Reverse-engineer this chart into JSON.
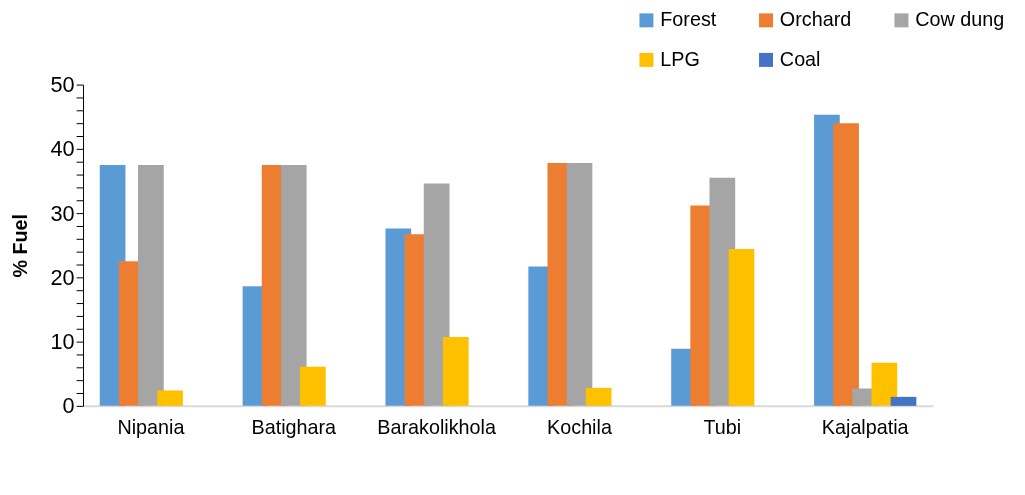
{
  "chart_data": {
    "type": "bar",
    "ylabel": "% Fuel",
    "categories": [
      "Nipania",
      "Batighara",
      "Barakolikhola",
      "Kochila",
      "Tubi",
      "Kajalpatia"
    ],
    "series": [
      {
        "name": "Forest",
        "color": "#5b9bd5",
        "values": [
          37.5,
          18.6,
          27.6,
          21.7,
          8.9,
          45.3
        ]
      },
      {
        "name": "Orchard",
        "color": "#ed7d31",
        "values": [
          22.5,
          37.5,
          26.7,
          37.8,
          31.2,
          44.0
        ]
      },
      {
        "name": "Cow dung",
        "color": "#a5a5a5",
        "values": [
          37.5,
          37.5,
          34.6,
          37.8,
          35.5,
          2.7
        ]
      },
      {
        "name": "LPG",
        "color": "#ffc000",
        "values": [
          2.4,
          6.1,
          10.7,
          2.8,
          24.4,
          6.7
        ]
      },
      {
        "name": "Coal",
        "color": "#4472c4",
        "values": [
          null,
          null,
          null,
          null,
          null,
          1.4
        ]
      }
    ],
    "ylim": [
      0,
      50
    ],
    "yticks": [
      0,
      {
        "value": 2,
        "label": null
      },
      {
        "value": 4,
        "label": null
      },
      {
        "value": 6,
        "label": null
      },
      {
        "value": 8,
        "label": null
      },
      10,
      {
        "value": 12,
        "label": null
      },
      {
        "value": 14,
        "label": null
      },
      {
        "value": 16,
        "label": null
      },
      {
        "value": 18,
        "label": null
      },
      20,
      {
        "value": 22,
        "label": null
      },
      {
        "value": 24,
        "label": null
      },
      {
        "value": 26,
        "label": null
      },
      {
        "value": 28,
        "label": null
      },
      30,
      {
        "value": 32,
        "label": null
      },
      {
        "value": 34,
        "label": null
      },
      {
        "value": 36,
        "label": null
      },
      {
        "value": 38,
        "label": null
      },
      40,
      {
        "value": 42,
        "label": null
      },
      {
        "value": 44,
        "label": null
      },
      {
        "value": 46,
        "label": null
      },
      {
        "value": 48,
        "label": null
      },
      50
    ],
    "grid": false,
    "legend": "top right"
  }
}
